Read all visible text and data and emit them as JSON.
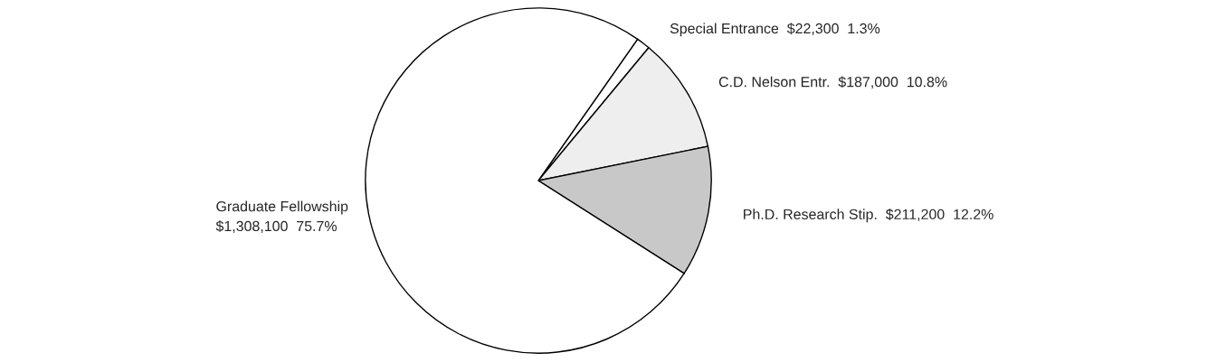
{
  "chart_data": {
    "type": "pie",
    "categories": [
      "Special Entrance",
      "C.D. Nelson Entr.",
      "Ph.D. Research Stip.",
      "Graduate Fellowship"
    ],
    "values": [
      22300,
      187000,
      211200,
      1308100
    ],
    "value_labels": [
      "$22,300  1.3%",
      "$187,000  10.8%",
      "$211,200  12.2%",
      "$1,308,100  75.7%"
    ],
    "colors": [
      "#ffffff",
      "#eeeeee",
      "#c8c8c8",
      "#ffffff"
    ]
  }
}
